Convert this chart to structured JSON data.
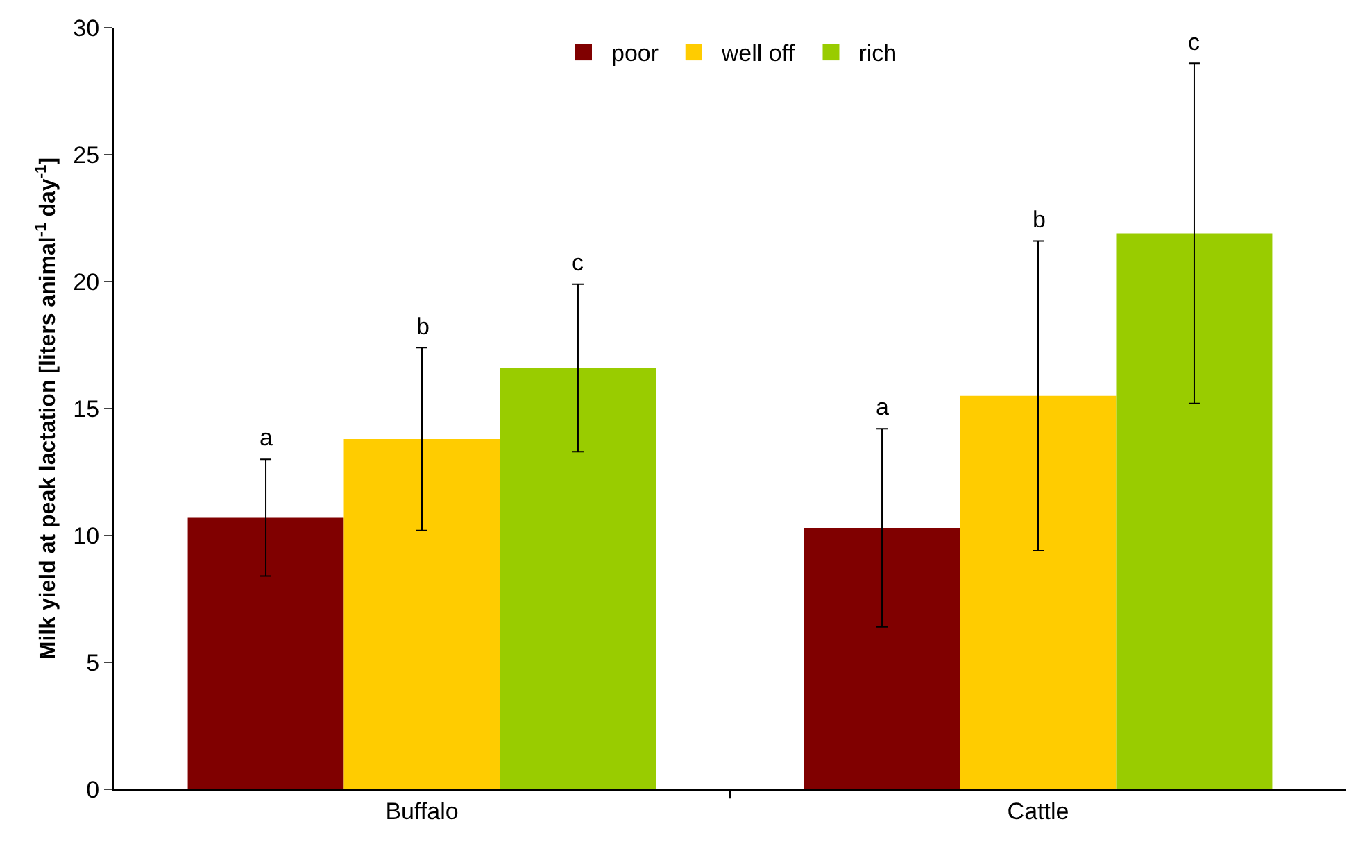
{
  "chart_data": {
    "type": "bar",
    "ylabel": "Milk yield at peak lactation [liters animal$^{-1}$ day$^{-1}$]",
    "categories": [
      "Buffalo",
      "Cattle"
    ],
    "series": [
      {
        "name": "poor",
        "color": "#800000",
        "values": [
          10.7,
          10.3
        ],
        "errors": [
          [
            8.4,
            13.0
          ],
          [
            6.4,
            14.2
          ]
        ]
      },
      {
        "name": "well off",
        "color": "#ffcc00",
        "values": [
          13.8,
          15.5
        ],
        "errors": [
          [
            10.2,
            17.4
          ],
          [
            9.4,
            21.6
          ]
        ]
      },
      {
        "name": "rich",
        "color": "#99cc00",
        "values": [
          16.6,
          21.9
        ],
        "errors": [
          [
            13.3,
            19.9
          ],
          [
            15.2,
            28.6
          ]
        ]
      }
    ],
    "annotations": [
      "a",
      "b",
      "c",
      "a",
      "b",
      "c"
    ],
    "ylim": [
      0,
      30
    ],
    "yticks": [
      0,
      5,
      10,
      15,
      20,
      25,
      30
    ],
    "grid": false,
    "legend": "top"
  }
}
